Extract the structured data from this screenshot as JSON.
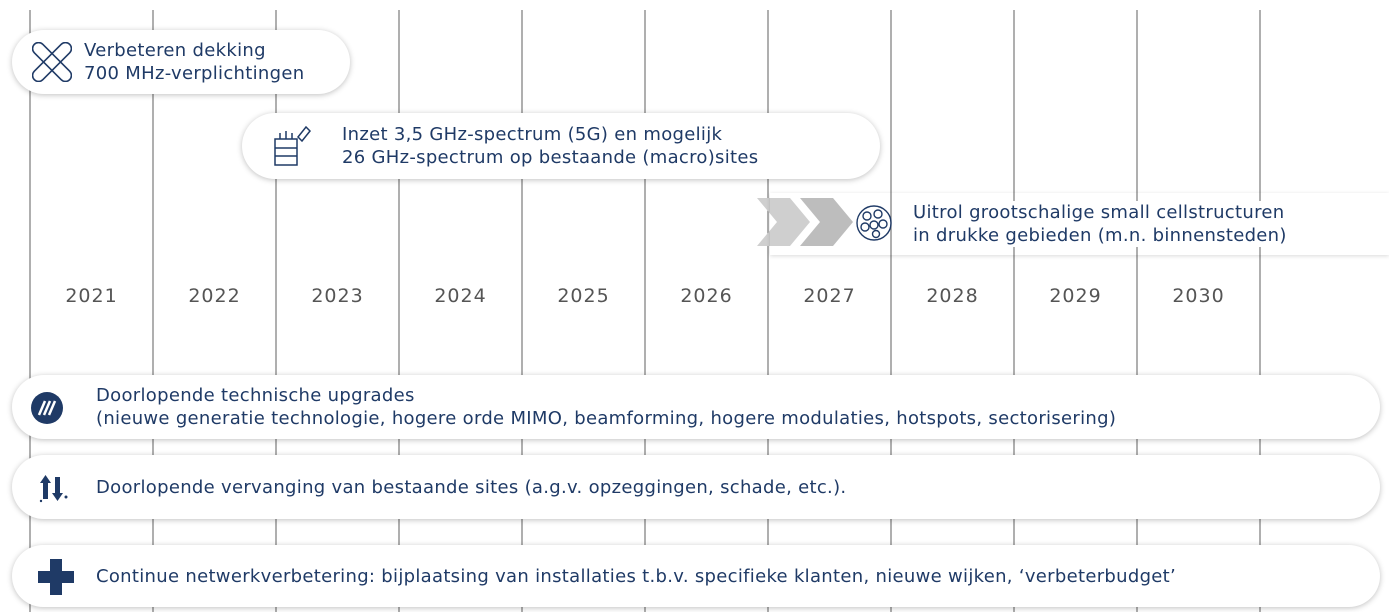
{
  "timeline": {
    "years": [
      "2021",
      "2022",
      "2023",
      "2024",
      "2025",
      "2026",
      "2027",
      "2028",
      "2029",
      "2030"
    ],
    "phases": [
      {
        "lines": [
          "Verbeteren dekking",
          "700 MHz-verplichtingen"
        ]
      },
      {
        "lines": [
          "Inzet 3,5 GHz-spectrum (5G) en mogelijk",
          "26 GHz-spectrum op bestaande (macro)sites"
        ]
      },
      {
        "lines": [
          "Uitrol grootschalige small cellstructuren",
          "in drukke gebieden (m.n. binnensteden)"
        ]
      }
    ],
    "continuous": [
      {
        "lines": [
          "Doorlopende technische upgrades",
          "(nieuwe generatie technologie, hogere orde MIMO, beamforming, hogere modulaties, hotspots, sectorisering)"
        ]
      },
      {
        "lines": [
          "Doorlopende vervanging van bestaande sites (a.g.v. opzeggingen, schade, etc.)."
        ]
      },
      {
        "lines": [
          "Continue netwerkverbetering: bijplaatsing van installaties t.b.v. specifieke klanten, nieuwe wijken, ‘verbeterbudget’"
        ]
      }
    ]
  }
}
